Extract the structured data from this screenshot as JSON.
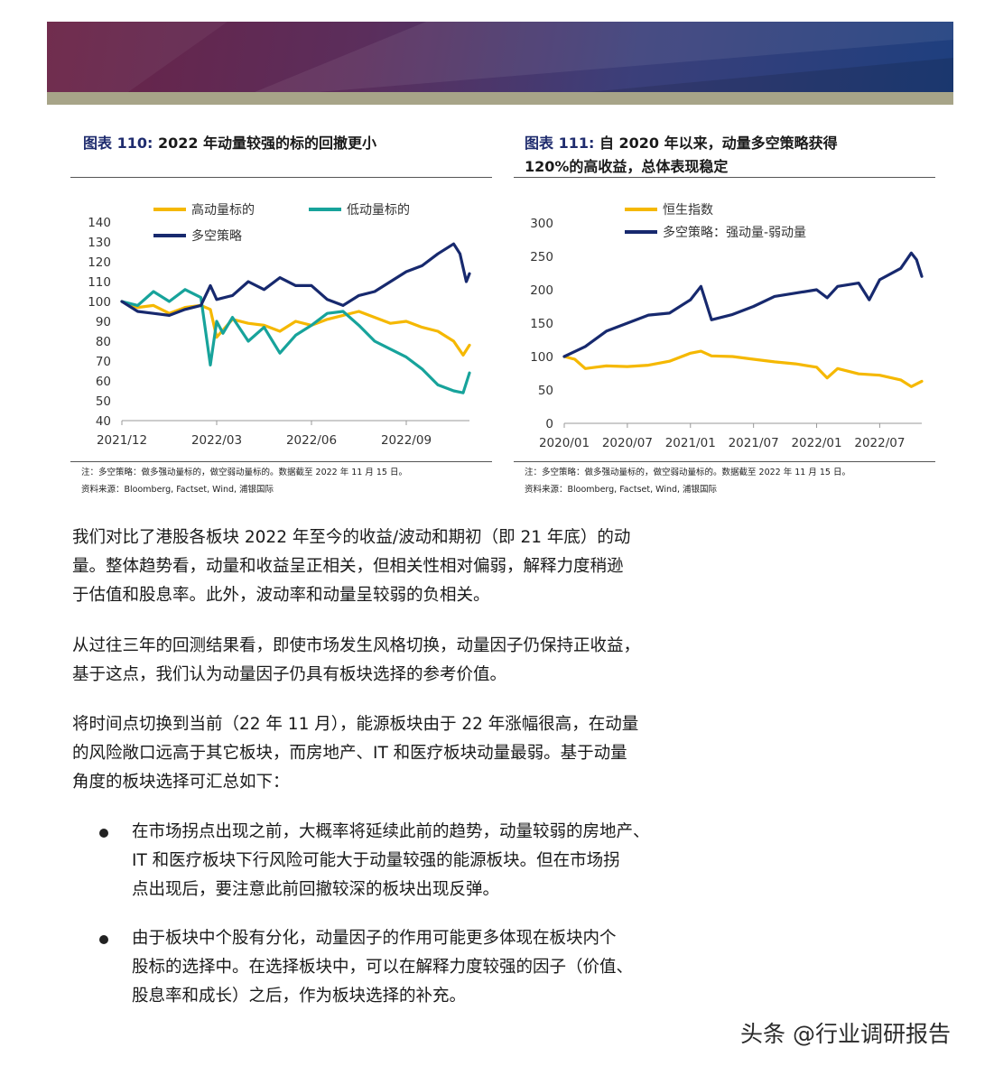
{
  "figures": [
    {
      "label": "图表 110:",
      "title": "2022 年动量较强的标的回撤更小",
      "note": "注：多空策略：做多强动量标的，做空弱动量标的。数据截至 2022 年 11 月 15 日。",
      "source": "资料来源：Bloomberg, Factset, Wind, 浦银国际"
    },
    {
      "label": "图表 111:",
      "title_line1": "自 2020 年以来，动量多空策略获得",
      "title_line2": "120%的高收益，总体表现稳定",
      "note": "注：多空策略：做多强动量标的，做空弱动量标的。数据截至 2022 年 11 月 15 日。",
      "source": "资料来源：Bloomberg, Factset, Wind, 浦银国际"
    }
  ],
  "chart_data": [
    {
      "type": "line",
      "x_tick_labels": [
        "2021/12",
        "2022/03",
        "2022/06",
        "2022/09"
      ],
      "y_ticks": [
        40,
        50,
        60,
        70,
        80,
        90,
        100,
        110,
        120,
        130,
        140
      ],
      "ylim": [
        40,
        140
      ],
      "x_range": [
        "2021/12",
        "2022/11"
      ],
      "legend_position": "top-left",
      "series": [
        {
          "name": "高动量标的",
          "color": "#f5b800",
          "x": [
            0,
            0.5,
            1,
            1.5,
            2,
            2.5,
            2.8,
            3,
            3.5,
            4,
            4.5,
            5,
            5.5,
            6,
            6.5,
            7,
            7.5,
            8,
            8.5,
            9,
            9.5,
            10,
            10.5,
            10.8,
            11
          ],
          "values": [
            100,
            97,
            98,
            94,
            97,
            98,
            96,
            82,
            91,
            89,
            88,
            85,
            90,
            88,
            91,
            93,
            95,
            92,
            89,
            90,
            87,
            85,
            80,
            73,
            78
          ]
        },
        {
          "name": "低动量标的",
          "color": "#17a39b",
          "x": [
            0,
            0.5,
            1,
            1.5,
            2,
            2.5,
            2.8,
            3,
            3.2,
            3.5,
            4,
            4.5,
            5,
            5.5,
            6,
            6.5,
            7,
            7.5,
            8,
            8.5,
            9,
            9.5,
            10,
            10.5,
            10.8,
            11
          ],
          "values": [
            100,
            98,
            105,
            100,
            106,
            102,
            68,
            90,
            84,
            92,
            80,
            87,
            74,
            83,
            88,
            94,
            95,
            88,
            80,
            76,
            72,
            66,
            58,
            55,
            54,
            64
          ]
        },
        {
          "name": "多空策略",
          "color": "#17296e",
          "x": [
            0,
            0.5,
            1,
            1.5,
            2,
            2.5,
            2.8,
            3,
            3.5,
            4,
            4.5,
            5,
            5.5,
            6,
            6.5,
            7,
            7.5,
            8,
            8.5,
            9,
            9.5,
            10,
            10.5,
            10.7,
            10.9,
            11
          ],
          "values": [
            100,
            95,
            94,
            93,
            96,
            98,
            108,
            101,
            103,
            110,
            106,
            112,
            108,
            108,
            101,
            98,
            103,
            105,
            110,
            115,
            118,
            124,
            129,
            124,
            110,
            114
          ]
        }
      ]
    },
    {
      "type": "line",
      "x_tick_labels": [
        "2020/01",
        "2020/07",
        "2021/01",
        "2021/07",
        "2022/01",
        "2022/07"
      ],
      "y_ticks": [
        0,
        50,
        100,
        150,
        200,
        250,
        300
      ],
      "ylim": [
        0,
        300
      ],
      "x_range": [
        "2020/01",
        "2022/11"
      ],
      "legend_position": "top-left",
      "series": [
        {
          "name": "恒生指数",
          "color": "#f5b800",
          "x": [
            0,
            1,
            2,
            3,
            4,
            6,
            8,
            10,
            12,
            13,
            14,
            16,
            18,
            20,
            22,
            24,
            25,
            26,
            28,
            30,
            32,
            33,
            34
          ],
          "values": [
            100,
            96,
            82,
            84,
            86,
            85,
            87,
            93,
            105,
            108,
            101,
            100,
            96,
            92,
            89,
            84,
            68,
            82,
            74,
            72,
            65,
            55,
            63
          ]
        },
        {
          "name": "多空策略：强动量-弱动量",
          "color": "#17296e",
          "x": [
            0,
            2,
            4,
            6,
            8,
            10,
            12,
            13,
            14,
            16,
            18,
            20,
            22,
            24,
            25,
            26,
            28,
            29,
            30,
            32,
            33,
            33.5,
            34
          ],
          "values": [
            100,
            115,
            138,
            150,
            162,
            165,
            185,
            205,
            155,
            163,
            175,
            190,
            195,
            200,
            188,
            205,
            210,
            185,
            215,
            232,
            255,
            245,
            220
          ]
        }
      ]
    }
  ],
  "paragraphs": [
    [
      "我们对比了港股各板块 2022 年至今的收益/波动和期初（即 21 年底）的动",
      "量。整体趋势看，动量和收益呈正相关，但相关性相对偏弱，解释力度稍逊",
      "于估值和股息率。此外，波动率和动量呈较弱的负相关。"
    ],
    [
      "从过往三年的回测结果看，即使市场发生风格切换，动量因子仍保持正收益，",
      "基于这点，我们认为动量因子仍具有板块选择的参考价值。"
    ],
    [
      "将时间点切换到当前（22 年 11 月），能源板块由于 22 年涨幅很高，在动量",
      "的风险敞口远高于其它板块，而房地产、IT 和医疗板块动量最弱。基于动量",
      "角度的板块选择可汇总如下："
    ]
  ],
  "bullets": [
    [
      "在市场拐点出现之前，大概率将延续此前的趋势，动量较弱的房地产、",
      "IT 和医疗板块下行风险可能大于动量较强的能源板块。但在市场拐",
      "点出现后，要注意此前回撤较深的板块出现反弹。"
    ],
    [
      "由于板块中个股有分化，动量因子的作用可能更多体现在板块内个",
      "股标的选择中。在选择板块中，可以在解释力度较强的因子（价值、",
      "股息率和成长）之后，作为板块选择的补充。"
    ]
  ],
  "watermark": "头条 @行业调研报告"
}
